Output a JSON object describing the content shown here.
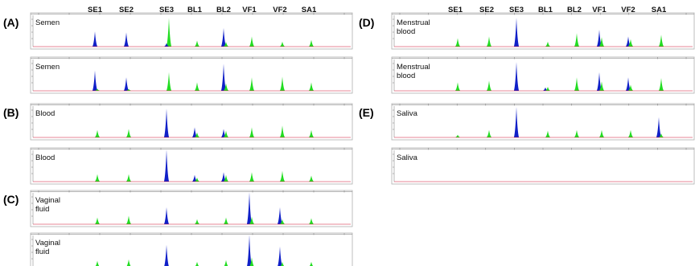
{
  "markers_left": [
    "SE1",
    "SE2",
    "SE3",
    "BL1",
    "BL2",
    "VF1",
    "VF2",
    "SA1"
  ],
  "markers_right": [
    "SE1",
    "SE2",
    "SE3",
    "BL1",
    "BL2",
    "VF1",
    "VF2",
    "SA1"
  ],
  "colors": {
    "blue": "#1020c8",
    "green": "#22dd22",
    "baseline": "#d01030",
    "frame": "#b0b0b0"
  },
  "panels": [
    {
      "letter": "(A)",
      "traces": [
        {
          "label": [
            "Semen"
          ],
          "peaks": [
            {
              "m": "SE1",
              "c": "blue",
              "h": 0.45
            },
            {
              "m": "SE2",
              "c": "blue",
              "h": 0.42
            },
            {
              "m": "SE3",
              "c": "green",
              "h": 0.85
            },
            {
              "m": "SE3",
              "c": "blue",
              "h": 0.1
            },
            {
              "m": "BL1",
              "c": "green",
              "h": 0.18
            },
            {
              "m": "BL2",
              "c": "blue",
              "h": 0.55
            },
            {
              "m": "BL2",
              "c": "green",
              "h": 0.14
            },
            {
              "m": "VF1",
              "c": "green",
              "h": 0.3
            },
            {
              "m": "VF2",
              "c": "green",
              "h": 0.15
            },
            {
              "m": "SA1",
              "c": "green",
              "h": 0.2
            }
          ]
        },
        {
          "label": [
            "Semen"
          ],
          "peaks": [
            {
              "m": "SE1",
              "c": "blue",
              "h": 0.6
            },
            {
              "m": "SE1",
              "c": "green",
              "h": 0.06
            },
            {
              "m": "SE2",
              "c": "blue",
              "h": 0.4
            },
            {
              "m": "SE2",
              "c": "green",
              "h": 0.05
            },
            {
              "m": "SE3",
              "c": "green",
              "h": 0.55
            },
            {
              "m": "BL1",
              "c": "green",
              "h": 0.25
            },
            {
              "m": "BL2",
              "c": "blue",
              "h": 0.8
            },
            {
              "m": "BL2",
              "c": "green",
              "h": 0.22
            },
            {
              "m": "VF1",
              "c": "green",
              "h": 0.4
            },
            {
              "m": "VF2",
              "c": "green",
              "h": 0.42
            },
            {
              "m": "SA1",
              "c": "green",
              "h": 0.25
            }
          ]
        }
      ]
    },
    {
      "letter": "(B)",
      "traces": [
        {
          "label": [
            "Blood"
          ],
          "peaks": [
            {
              "m": "SE1",
              "c": "green",
              "h": 0.22
            },
            {
              "m": "SE2",
              "c": "green",
              "h": 0.25
            },
            {
              "m": "SE3",
              "c": "blue",
              "h": 0.85
            },
            {
              "m": "BL1",
              "c": "blue",
              "h": 0.3
            },
            {
              "m": "BL1",
              "c": "green",
              "h": 0.15
            },
            {
              "m": "BL2",
              "c": "blue",
              "h": 0.25
            },
            {
              "m": "BL2",
              "c": "green",
              "h": 0.2
            },
            {
              "m": "VF1",
              "c": "green",
              "h": 0.3
            },
            {
              "m": "VF2",
              "c": "green",
              "h": 0.35
            },
            {
              "m": "SA1",
              "c": "green",
              "h": 0.22
            }
          ]
        },
        {
          "label": [
            "Blood"
          ],
          "peaks": [
            {
              "m": "SE1",
              "c": "green",
              "h": 0.22
            },
            {
              "m": "SE2",
              "c": "green",
              "h": 0.22
            },
            {
              "m": "SE3",
              "c": "blue",
              "h": 0.95
            },
            {
              "m": "BL1",
              "c": "blue",
              "h": 0.2
            },
            {
              "m": "BL1",
              "c": "green",
              "h": 0.12
            },
            {
              "m": "BL2",
              "c": "blue",
              "h": 0.28
            },
            {
              "m": "BL2",
              "c": "green",
              "h": 0.2
            },
            {
              "m": "VF1",
              "c": "green",
              "h": 0.28
            },
            {
              "m": "VF2",
              "c": "green",
              "h": 0.32
            },
            {
              "m": "SA1",
              "c": "green",
              "h": 0.18
            }
          ]
        }
      ]
    },
    {
      "letter": "(C)",
      "traces": [
        {
          "label": [
            "Vaginal",
            "fluid"
          ],
          "peaks": [
            {
              "m": "SE1",
              "c": "green",
              "h": 0.2
            },
            {
              "m": "SE2",
              "c": "green",
              "h": 0.25
            },
            {
              "m": "SE3",
              "c": "blue",
              "h": 0.5
            },
            {
              "m": "BL1",
              "c": "green",
              "h": 0.15
            },
            {
              "m": "BL2",
              "c": "green",
              "h": 0.2
            },
            {
              "m": "VF1",
              "c": "blue",
              "h": 0.95
            },
            {
              "m": "VF1",
              "c": "green",
              "h": 0.22
            },
            {
              "m": "VF2",
              "c": "blue",
              "h": 0.5
            },
            {
              "m": "VF2",
              "c": "green",
              "h": 0.15
            },
            {
              "m": "SA1",
              "c": "green",
              "h": 0.18
            }
          ]
        },
        {
          "label": [
            "Vaginal",
            "fluid"
          ],
          "peaks": [
            {
              "m": "SE1",
              "c": "green",
              "h": 0.18
            },
            {
              "m": "SE2",
              "c": "green",
              "h": 0.22
            },
            {
              "m": "SE3",
              "c": "blue",
              "h": 0.65
            },
            {
              "m": "BL1",
              "c": "green",
              "h": 0.15
            },
            {
              "m": "BL2",
              "c": "green",
              "h": 0.2
            },
            {
              "m": "VF1",
              "c": "blue",
              "h": 0.95
            },
            {
              "m": "VF1",
              "c": "green",
              "h": 0.28
            },
            {
              "m": "VF2",
              "c": "blue",
              "h": 0.6
            },
            {
              "m": "VF2",
              "c": "green",
              "h": 0.15
            },
            {
              "m": "SA1",
              "c": "green",
              "h": 0.15
            }
          ]
        }
      ]
    },
    {
      "letter": "(D)",
      "traces": [
        {
          "label": [
            "Menstrual",
            "blood"
          ],
          "peaks": [
            {
              "m": "SE1",
              "c": "green",
              "h": 0.25
            },
            {
              "m": "SE2",
              "c": "green",
              "h": 0.3
            },
            {
              "m": "SE3",
              "c": "blue",
              "h": 0.85
            },
            {
              "m": "BL1",
              "c": "green",
              "h": 0.15
            },
            {
              "m": "BL2",
              "c": "green",
              "h": 0.4
            },
            {
              "m": "VF1",
              "c": "blue",
              "h": 0.5
            },
            {
              "m": "VF1",
              "c": "green",
              "h": 0.28
            },
            {
              "m": "VF2",
              "c": "blue",
              "h": 0.3
            },
            {
              "m": "VF2",
              "c": "green",
              "h": 0.22
            },
            {
              "m": "SA1",
              "c": "green",
              "h": 0.35
            }
          ]
        },
        {
          "label": [
            "Menstrual",
            "blood"
          ],
          "peaks": [
            {
              "m": "SE1",
              "c": "green",
              "h": 0.25
            },
            {
              "m": "SE2",
              "c": "green",
              "h": 0.3
            },
            {
              "m": "SE3",
              "c": "blue",
              "h": 0.85
            },
            {
              "m": "BL1",
              "c": "blue",
              "h": 0.1
            },
            {
              "m": "BL1",
              "c": "green",
              "h": 0.12
            },
            {
              "m": "BL2",
              "c": "green",
              "h": 0.4
            },
            {
              "m": "VF1",
              "c": "blue",
              "h": 0.55
            },
            {
              "m": "VF1",
              "c": "green",
              "h": 0.28
            },
            {
              "m": "VF2",
              "c": "blue",
              "h": 0.4
            },
            {
              "m": "VF2",
              "c": "green",
              "h": 0.18
            },
            {
              "m": "SA1",
              "c": "green",
              "h": 0.38
            }
          ]
        }
      ]
    },
    {
      "letter": "(E)",
      "traces": [
        {
          "label": [
            "Saliva"
          ],
          "peaks": [
            {
              "m": "SE1",
              "c": "green",
              "h": 0.08
            },
            {
              "m": "SE2",
              "c": "green",
              "h": 0.22
            },
            {
              "m": "SE3",
              "c": "blue",
              "h": 0.9
            },
            {
              "m": "BL1",
              "c": "green",
              "h": 0.2
            },
            {
              "m": "BL2",
              "c": "green",
              "h": 0.22
            },
            {
              "m": "VF1",
              "c": "green",
              "h": 0.22
            },
            {
              "m": "VF2",
              "c": "green",
              "h": 0.22
            },
            {
              "m": "SA1",
              "c": "blue",
              "h": 0.6
            },
            {
              "m": "SA1",
              "c": "green",
              "h": 0.12
            }
          ]
        },
        {
          "label": [
            "Saliva"
          ],
          "peaks": []
        }
      ]
    }
  ]
}
